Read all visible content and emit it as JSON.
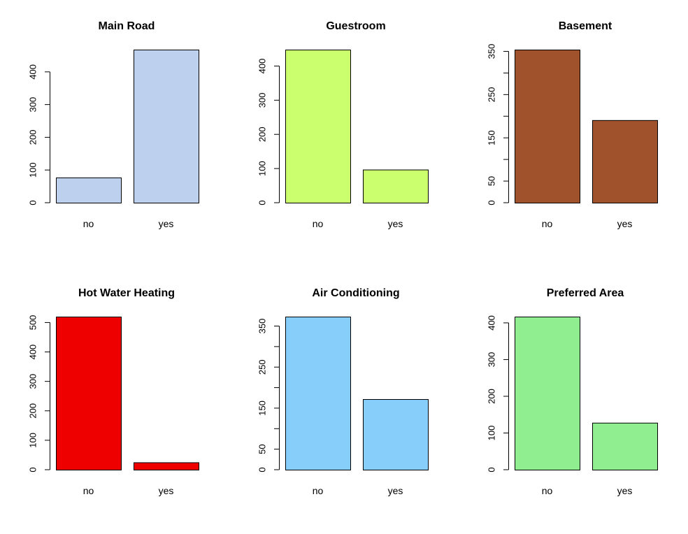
{
  "chart_data": [
    {
      "type": "bar",
      "title": "Main Road",
      "categories": [
        "no",
        "yes"
      ],
      "values": [
        77,
        468
      ],
      "ylim": [
        0,
        468
      ],
      "yticks": [
        0,
        100,
        200,
        300,
        400
      ],
      "color": "#bdd1ef",
      "grid": false
    },
    {
      "type": "bar",
      "title": "Guestroom",
      "categories": [
        "no",
        "yes"
      ],
      "values": [
        448,
        97
      ],
      "ylim": [
        0,
        448
      ],
      "yticks": [
        0,
        100,
        200,
        300,
        400
      ],
      "color": "#cbff6d",
      "grid": false
    },
    {
      "type": "bar",
      "title": "Basement",
      "categories": [
        "no",
        "yes"
      ],
      "values": [
        354,
        191
      ],
      "ylim": [
        0,
        354
      ],
      "yticks": [
        0,
        50,
        100,
        150,
        200,
        250,
        300,
        350
      ],
      "ytick_labels": [
        "0",
        "50",
        "",
        "150",
        "",
        "250",
        "",
        "350"
      ],
      "color": "#a0522d",
      "grid": false
    },
    {
      "type": "bar",
      "title": "Hot Water Heating",
      "categories": [
        "no",
        "yes"
      ],
      "values": [
        520,
        25
      ],
      "ylim": [
        0,
        520
      ],
      "yticks": [
        0,
        100,
        200,
        300,
        400,
        500
      ],
      "color": "#ee0000",
      "grid": false
    },
    {
      "type": "bar",
      "title": "Air Conditioning",
      "categories": [
        "no",
        "yes"
      ],
      "values": [
        373,
        172
      ],
      "ylim": [
        0,
        373
      ],
      "yticks": [
        0,
        50,
        100,
        150,
        200,
        250,
        300,
        350
      ],
      "ytick_labels": [
        "0",
        "50",
        "",
        "150",
        "",
        "250",
        "",
        "350"
      ],
      "color": "#87cefa",
      "grid": false
    },
    {
      "type": "bar",
      "title": "Preferred Area",
      "categories": [
        "no",
        "yes"
      ],
      "values": [
        417,
        128
      ],
      "ylim": [
        0,
        417
      ],
      "yticks": [
        0,
        100,
        200,
        300,
        400
      ],
      "color": "#90ee90",
      "grid": false
    }
  ]
}
